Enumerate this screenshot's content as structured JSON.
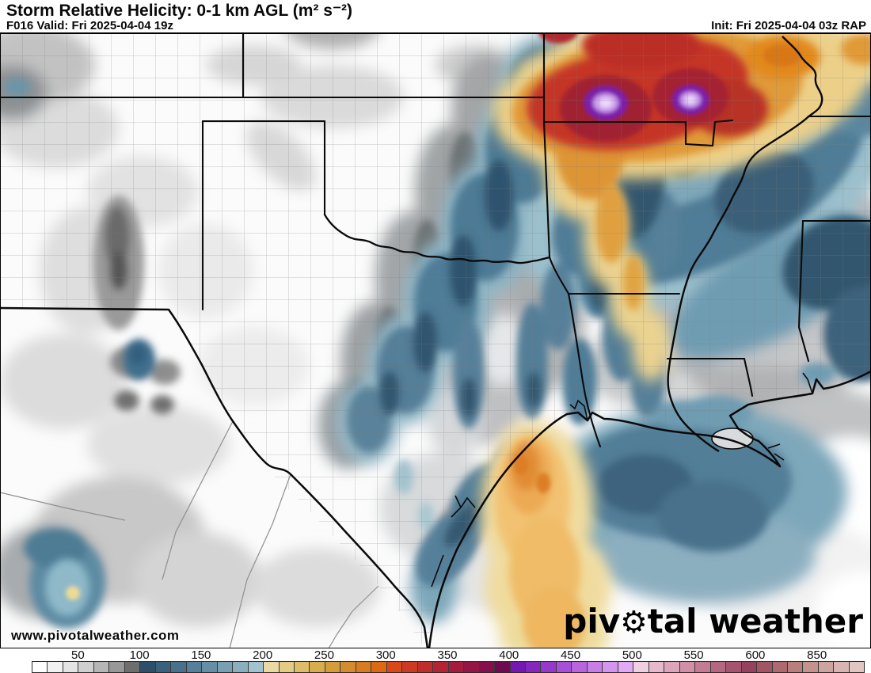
{
  "header": {
    "title": "Storm Relative Helicity: 0-1 km AGL (m² s⁻²)",
    "valid_line": "F016 Valid: Fri 2025-04-04 19z",
    "init_line": "Init: Fri 2025-04-04 03z RAP"
  },
  "map": {
    "watermark": "www.pivotalweather.com",
    "logo": {
      "part1": "piv",
      "gear_icon": "⚙",
      "part2": "tal weather"
    }
  },
  "colorbar": {
    "tick_values": [
      "50",
      "100",
      "150",
      "200",
      "250",
      "300",
      "350",
      "400",
      "450",
      "500",
      "550",
      "600",
      "850"
    ],
    "cells_per_tick_interval": 4,
    "cells_before_first_tick": 3,
    "cell_colors": [
      "#ffffff",
      "#f2f2f2",
      "#e4e4e4",
      "#d0d0d0",
      "#b6b6b6",
      "#989898",
      "#6e6e6e",
      "#2d4f69",
      "#3a617c",
      "#48718b",
      "#567f99",
      "#668fa6",
      "#789fb2",
      "#8cafc0",
      "#a2c2cf",
      "#ead9a2",
      "#e5cc85",
      "#dfbd68",
      "#d9ad4e",
      "#d59c3c",
      "#d48c2f",
      "#d87c22",
      "#dc6a15",
      "#d9481b",
      "#cc3a24",
      "#c02e2c",
      "#b32535",
      "#a51d3e",
      "#951545",
      "#83104b",
      "#6f0a50",
      "#7517b0",
      "#8527bd",
      "#9639c9",
      "#a74fd5",
      "#b866de",
      "#c77ee7",
      "#d495ee",
      "#e0abf4",
      "#efcfe0",
      "#e7bacb",
      "#dda5b9",
      "#d190a6",
      "#c47b93",
      "#b66681",
      "#a7536f",
      "#97415e",
      "#a25663",
      "#ad6a6f",
      "#b87f7d",
      "#c3938c",
      "#cda49e",
      "#d7b5b0",
      "#e1c6c2"
    ]
  },
  "chart_data": {
    "type": "heatmap",
    "title": "Storm Relative Helicity: 0-1 km AGL (m² s⁻²)",
    "units": "m² s⁻²",
    "model": "RAP",
    "forecast_hour": "F016",
    "valid": "Fri 2025-04-04 19z",
    "init": "Fri 2025-04-04 03z",
    "region": "South-central United States: Texas, Oklahoma, Arkansas, Louisiana, Mississippi and NW Gulf of Mexico",
    "scale_ticks": [
      50,
      100,
      150,
      200,
      250,
      300,
      350,
      400,
      450,
      500,
      550,
      600,
      850
    ],
    "scale_colors_summary": {
      "0-100": "white to dark gray",
      "100-200": "dark slate blue to light steel blue",
      "200-300": "pale khaki to dark orange",
      "300-400": "red to dark crimson",
      "400-500": "vivid purple to pale lavender",
      "500-600": "pale pink to dark rose",
      "600-850+": "dark rose fading to dusty pink"
    },
    "notable_features": [
      {
        "area": "northern Arkansas / southern Missouri",
        "value_range": "350-500",
        "description": "two purple-core maxima (~450-500) inside broad red/orange field"
      },
      {
        "area": "top-right corner near Kentucky bend",
        "value_range": "250-350",
        "description": "secondary orange/red maximum"
      },
      {
        "area": "SW-to-NE corridor across central Texas into Oklahoma/Arkansas",
        "value_range": "100-200",
        "description": "broad steel-blue band"
      },
      {
        "area": "Gulf of Mexico plume south of Houston/Matagorda",
        "value_range": "200-300",
        "description": "yellow-orange plume extending offshore"
      },
      {
        "area": "Texas coastal waters and NW Gulf",
        "value_range": "100-200",
        "description": "blue coastal band"
      },
      {
        "area": "west Texas, New Mexico border, Mississippi/Alabama",
        "value_range": "25-100",
        "description": "gray low-helicity fields"
      },
      {
        "area": "Mexico near Big Bend (bottom-left)",
        "value_range": "100-250",
        "description": "isolated teal blob with small yellow core"
      }
    ]
  }
}
